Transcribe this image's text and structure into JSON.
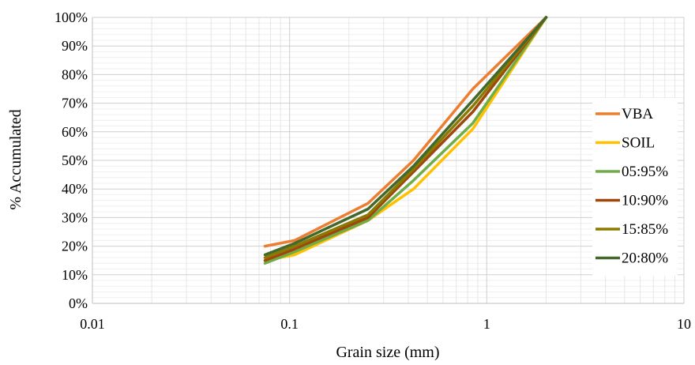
{
  "chart_data": {
    "type": "line",
    "xlabel": "Grain size (mm)",
    "ylabel": "% Accumulated",
    "xscale": "log",
    "xlim": [
      0.01,
      10
    ],
    "ylim": [
      0,
      100
    ],
    "x_ticks": [
      {
        "value": 0.01,
        "label": "0.01"
      },
      {
        "value": 0.1,
        "label": "0.1"
      },
      {
        "value": 1,
        "label": "1"
      },
      {
        "value": 10,
        "label": "10"
      }
    ],
    "y_ticks": [
      {
        "value": 0,
        "label": "0%"
      },
      {
        "value": 10,
        "label": "10%"
      },
      {
        "value": 20,
        "label": "20%"
      },
      {
        "value": 30,
        "label": "30%"
      },
      {
        "value": 40,
        "label": "40%"
      },
      {
        "value": 50,
        "label": "50%"
      },
      {
        "value": 60,
        "label": "60%"
      },
      {
        "value": 70,
        "label": "70%"
      },
      {
        "value": 80,
        "label": "80%"
      },
      {
        "value": 90,
        "label": "90%"
      },
      {
        "value": 100,
        "label": "100%"
      }
    ],
    "grid": "major and minor, log x",
    "legend_position": "right",
    "x": [
      0.075,
      0.106,
      0.25,
      0.425,
      0.85,
      2.0
    ],
    "series": [
      {
        "name": "VBA",
        "color": "#ED7D31",
        "values": [
          20,
          22,
          35,
          50,
          75,
          100
        ]
      },
      {
        "name": "SOIL",
        "color": "#FFC000",
        "values": [
          15,
          17,
          29,
          40,
          61,
          100
        ]
      },
      {
        "name": "05:95%",
        "color": "#70AD47",
        "values": [
          14,
          18,
          29,
          43,
          63,
          100
        ]
      },
      {
        "name": "10:90%",
        "color": "#9E480E",
        "values": [
          15,
          19,
          30,
          46,
          67,
          100
        ]
      },
      {
        "name": "15:85%",
        "color": "#8B7A00",
        "values": [
          16,
          20,
          31,
          47,
          69,
          100
        ]
      },
      {
        "name": "20:80%",
        "color": "#43682B",
        "values": [
          17,
          21,
          33,
          48,
          71,
          100
        ]
      }
    ]
  }
}
